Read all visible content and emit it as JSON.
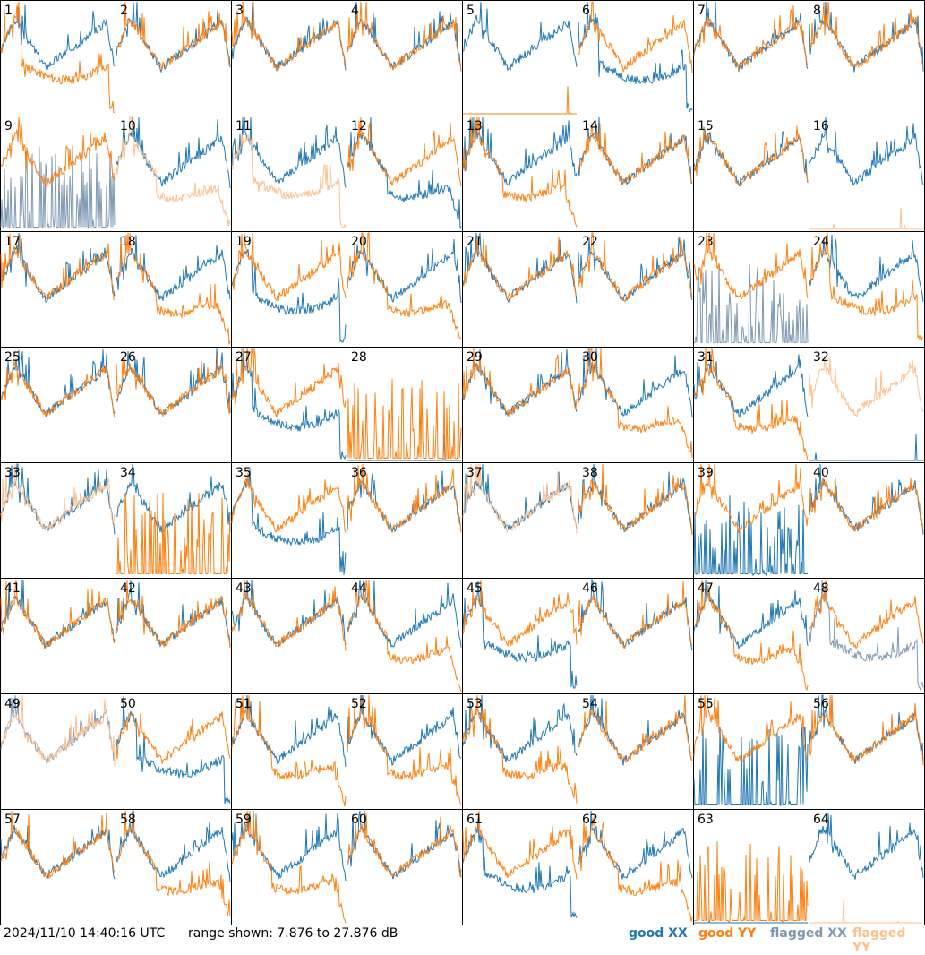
{
  "footer": {
    "timestamp": "2024/11/10 14:40:16 UTC",
    "range": "range shown: 7.876 to 27.876 dB"
  },
  "legend": {
    "good_xx": "good XX",
    "good_yy": "good YY",
    "flagged_xx": "flagged XX",
    "flagged_yy": "flagged YY"
  },
  "colors": {
    "good_xx": "#1f77b4",
    "good_yy": "#ff7f0e",
    "flagged_xx": "#7f99b3",
    "flagged_yy": "#ffbf8c"
  },
  "chart_data": {
    "type": "line",
    "grid": "8x8 small multiples",
    "ylim_db": [
      7.876,
      27.876
    ],
    "panels": [
      {
        "label": "1",
        "xx": "good",
        "yy": "good",
        "xx_shape": "normal",
        "yy_shape": "dip"
      },
      {
        "label": "2",
        "xx": "good",
        "yy": "good",
        "xx_shape": "normal",
        "yy_shape": "normal"
      },
      {
        "label": "3",
        "xx": "good",
        "yy": "good",
        "xx_shape": "normal",
        "yy_shape": "normal"
      },
      {
        "label": "4",
        "xx": "good",
        "yy": "good",
        "xx_shape": "normal",
        "yy_shape": "normal"
      },
      {
        "label": "5",
        "xx": "good",
        "yy": "good",
        "xx_shape": "normal",
        "yy_shape": "zero"
      },
      {
        "label": "6",
        "xx": "good",
        "yy": "good",
        "xx_shape": "dip",
        "yy_shape": "normal"
      },
      {
        "label": "7",
        "xx": "good",
        "yy": "good",
        "xx_shape": "normal",
        "yy_shape": "normal"
      },
      {
        "label": "8",
        "xx": "good",
        "yy": "good",
        "xx_shape": "normal",
        "yy_shape": "normal"
      },
      {
        "label": "9",
        "xx": "flagged",
        "yy": "good",
        "xx_shape": "spiky",
        "yy_shape": "normal"
      },
      {
        "label": "10",
        "xx": "good",
        "yy": "flagged",
        "xx_shape": "normal",
        "yy_shape": "droop"
      },
      {
        "label": "11",
        "xx": "good",
        "yy": "flagged",
        "xx_shape": "normal",
        "yy_shape": "dip"
      },
      {
        "label": "12",
        "xx": "good",
        "yy": "good",
        "xx_shape": "droop",
        "yy_shape": "normal"
      },
      {
        "label": "13",
        "xx": "good",
        "yy": "good",
        "xx_shape": "normal",
        "yy_shape": "droop"
      },
      {
        "label": "14",
        "xx": "good",
        "yy": "good",
        "xx_shape": "normal",
        "yy_shape": "normal"
      },
      {
        "label": "15",
        "xx": "good",
        "yy": "good",
        "xx_shape": "normal",
        "yy_shape": "normal"
      },
      {
        "label": "16",
        "xx": "good",
        "yy": "flagged",
        "xx_shape": "normal",
        "yy_shape": "zero"
      },
      {
        "label": "17",
        "xx": "good",
        "yy": "good",
        "xx_shape": "normal",
        "yy_shape": "normal"
      },
      {
        "label": "18",
        "xx": "good",
        "yy": "good",
        "xx_shape": "normal",
        "yy_shape": "droop"
      },
      {
        "label": "19",
        "xx": "good",
        "yy": "good",
        "xx_shape": "dip",
        "yy_shape": "normal"
      },
      {
        "label": "20",
        "xx": "good",
        "yy": "good",
        "xx_shape": "normal",
        "yy_shape": "droop"
      },
      {
        "label": "21",
        "xx": "good",
        "yy": "good",
        "xx_shape": "normal",
        "yy_shape": "normal"
      },
      {
        "label": "22",
        "xx": "good",
        "yy": "good",
        "xx_shape": "normal",
        "yy_shape": "normal"
      },
      {
        "label": "23",
        "xx": "flagged",
        "yy": "good",
        "xx_shape": "spiky",
        "yy_shape": "normal"
      },
      {
        "label": "24",
        "xx": "good",
        "yy": "good",
        "xx_shape": "normal",
        "yy_shape": "dip"
      },
      {
        "label": "25",
        "xx": "good",
        "yy": "good",
        "xx_shape": "normal",
        "yy_shape": "normal"
      },
      {
        "label": "26",
        "xx": "good",
        "yy": "good",
        "xx_shape": "normal",
        "yy_shape": "normal"
      },
      {
        "label": "27",
        "xx": "good",
        "yy": "good",
        "xx_shape": "dip",
        "yy_shape": "normal"
      },
      {
        "label": "28",
        "xx": "good",
        "yy": "good",
        "xx_shape": "zero",
        "yy_shape": "spiky"
      },
      {
        "label": "29",
        "xx": "good",
        "yy": "good",
        "xx_shape": "normal",
        "yy_shape": "normal"
      },
      {
        "label": "30",
        "xx": "good",
        "yy": "good",
        "xx_shape": "normal",
        "yy_shape": "droop"
      },
      {
        "label": "31",
        "xx": "good",
        "yy": "good",
        "xx_shape": "normal",
        "yy_shape": "droop"
      },
      {
        "label": "32",
        "xx": "good",
        "yy": "flagged",
        "xx_shape": "zero",
        "yy_shape": "normal"
      },
      {
        "label": "33",
        "xx": "good",
        "yy": "flagged",
        "xx_shape": "normal",
        "yy_shape": "normal"
      },
      {
        "label": "34",
        "xx": "good",
        "yy": "good",
        "xx_shape": "normal",
        "yy_shape": "spiky"
      },
      {
        "label": "35",
        "xx": "good",
        "yy": "good",
        "xx_shape": "dip",
        "yy_shape": "normal"
      },
      {
        "label": "36",
        "xx": "good",
        "yy": "good",
        "xx_shape": "normal",
        "yy_shape": "normal"
      },
      {
        "label": "37",
        "xx": "good",
        "yy": "flagged",
        "xx_shape": "normal",
        "yy_shape": "normal"
      },
      {
        "label": "38",
        "xx": "good",
        "yy": "good",
        "xx_shape": "normal",
        "yy_shape": "normal"
      },
      {
        "label": "39",
        "xx": "good",
        "yy": "good",
        "xx_shape": "spiky",
        "yy_shape": "normal"
      },
      {
        "label": "40",
        "xx": "good",
        "yy": "good",
        "xx_shape": "normal",
        "yy_shape": "normal"
      },
      {
        "label": "41",
        "xx": "good",
        "yy": "good",
        "xx_shape": "normal",
        "yy_shape": "normal"
      },
      {
        "label": "42",
        "xx": "good",
        "yy": "good",
        "xx_shape": "normal",
        "yy_shape": "normal"
      },
      {
        "label": "43",
        "xx": "good",
        "yy": "good",
        "xx_shape": "normal",
        "yy_shape": "normal"
      },
      {
        "label": "44",
        "xx": "good",
        "yy": "good",
        "xx_shape": "normal",
        "yy_shape": "droop"
      },
      {
        "label": "45",
        "xx": "good",
        "yy": "good",
        "xx_shape": "dip",
        "yy_shape": "normal"
      },
      {
        "label": "46",
        "xx": "good",
        "yy": "good",
        "xx_shape": "normal",
        "yy_shape": "normal"
      },
      {
        "label": "47",
        "xx": "good",
        "yy": "good",
        "xx_shape": "normal",
        "yy_shape": "droop"
      },
      {
        "label": "48",
        "xx": "flagged",
        "yy": "good",
        "xx_shape": "dip",
        "yy_shape": "normal"
      },
      {
        "label": "49",
        "xx": "flagged",
        "yy": "flagged",
        "xx_shape": "normal",
        "yy_shape": "normal"
      },
      {
        "label": "50",
        "xx": "good",
        "yy": "good",
        "xx_shape": "dip",
        "yy_shape": "normal"
      },
      {
        "label": "51",
        "xx": "good",
        "yy": "good",
        "xx_shape": "normal",
        "yy_shape": "droop"
      },
      {
        "label": "52",
        "xx": "good",
        "yy": "good",
        "xx_shape": "normal",
        "yy_shape": "droop"
      },
      {
        "label": "53",
        "xx": "good",
        "yy": "good",
        "xx_shape": "normal",
        "yy_shape": "droop"
      },
      {
        "label": "54",
        "xx": "good",
        "yy": "good",
        "xx_shape": "normal",
        "yy_shape": "normal"
      },
      {
        "label": "55",
        "xx": "good",
        "yy": "good",
        "xx_shape": "spiky",
        "yy_shape": "normal"
      },
      {
        "label": "56",
        "xx": "good",
        "yy": "good",
        "xx_shape": "normal",
        "yy_shape": "normal"
      },
      {
        "label": "57",
        "xx": "good",
        "yy": "good",
        "xx_shape": "normal",
        "yy_shape": "normal"
      },
      {
        "label": "58",
        "xx": "good",
        "yy": "good",
        "xx_shape": "normal",
        "yy_shape": "droop"
      },
      {
        "label": "59",
        "xx": "good",
        "yy": "good",
        "xx_shape": "normal",
        "yy_shape": "droop"
      },
      {
        "label": "60",
        "xx": "good",
        "yy": "good",
        "xx_shape": "normal",
        "yy_shape": "normal"
      },
      {
        "label": "61",
        "xx": "good",
        "yy": "good",
        "xx_shape": "dip",
        "yy_shape": "normal"
      },
      {
        "label": "62",
        "xx": "good",
        "yy": "good",
        "xx_shape": "normal",
        "yy_shape": "droop"
      },
      {
        "label": "63",
        "xx": "good",
        "yy": "good",
        "xx_shape": "zero",
        "yy_shape": "spiky"
      },
      {
        "label": "64",
        "xx": "good",
        "yy": "flagged",
        "xx_shape": "normal",
        "yy_shape": "zero"
      }
    ]
  }
}
